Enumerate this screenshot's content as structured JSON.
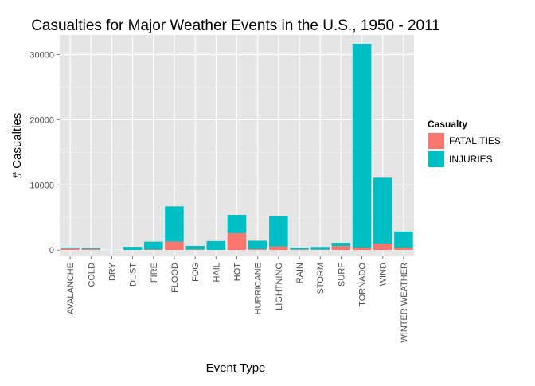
{
  "chart_data": {
    "type": "bar",
    "stacked": true,
    "title": "Casualties for Major Weather Events in the U.S., 1950 - 2011",
    "xlabel": "Event Type",
    "ylabel": "# Casualties",
    "ylim": [
      -950,
      33000
    ],
    "yticks": [
      0,
      10000,
      20000,
      30000
    ],
    "ytick_labels": [
      "0",
      "10000",
      "20000",
      "30000"
    ],
    "grid": true,
    "legend_position": "right",
    "categories": [
      "AVALANCHE",
      "COLD",
      "DRY",
      "DUST",
      "FIRE",
      "FLOOD",
      "FOG",
      "HAIL",
      "HOT",
      "HURRICANE",
      "LIGHTNING",
      "RAIN",
      "STORM",
      "SURF",
      "TORNADO",
      "WIND",
      "WINTER WEATHER"
    ],
    "legend_title": "Casualty",
    "series": [
      {
        "name": "FATALITIES",
        "color": "#F8766D",
        "values": [
          225,
          160,
          0,
          25,
          90,
          1300,
          80,
          20,
          2600,
          135,
          570,
          100,
          80,
          620,
          360,
          1000,
          350
        ]
      },
      {
        "name": "INJURIES",
        "color": "#00BFC4",
        "values": [
          170,
          160,
          20,
          480,
          1200,
          5400,
          560,
          1360,
          2800,
          1300,
          4600,
          280,
          400,
          500,
          31300,
          10100,
          2500
        ]
      }
    ]
  }
}
